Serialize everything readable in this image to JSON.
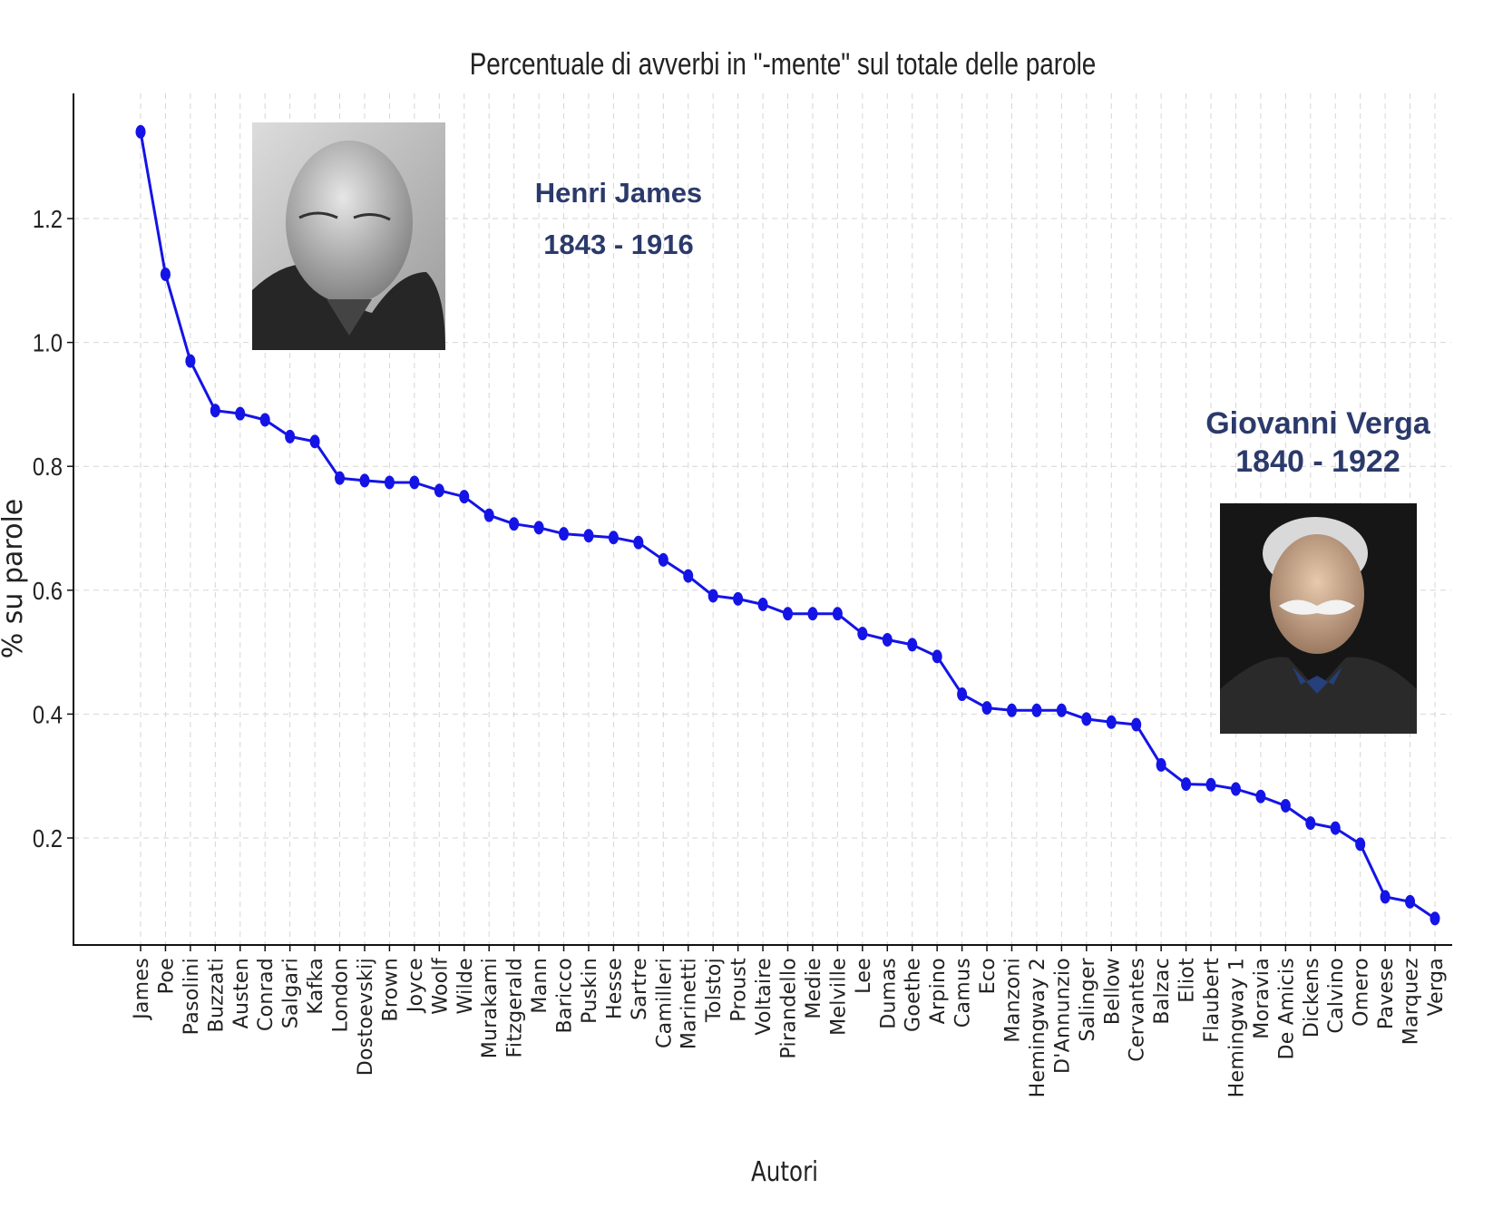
{
  "chart_data": {
    "type": "line",
    "title": "Percentuale di avverbi in \"-mente\" sul totale delle parole",
    "xlabel": "Autori",
    "ylabel": "% su parole",
    "ylim": [
      0.0,
      1.36
    ],
    "yticks": [
      "0.2",
      "0.4",
      "0.6",
      "0.8",
      "1.0",
      "1.2"
    ],
    "grid": true,
    "categories": [
      "James",
      "Poe",
      "Pasolini",
      "Buzzati",
      "Austen",
      "Conrad",
      "Salgari",
      "Kafka",
      "London",
      "Dostoevskij",
      "Brown",
      "Joyce",
      "Woolf",
      "Wilde",
      "Murakami",
      "Fitzgerald",
      "Mann",
      "Baricco",
      "Puskin",
      "Hesse",
      "Sartre",
      "Camilleri",
      "Marinetti",
      "Tolstoj",
      "Proust",
      "Voltaire",
      "Pirandello",
      "Medie",
      "Melville",
      "Lee",
      "Dumas",
      "Goethe",
      "Arpino",
      "Camus",
      "Eco",
      "Manzoni",
      "Hemingway 2",
      "D'Annunzio",
      "Salinger",
      "Bellow",
      "Cervantes",
      "Balzac",
      "Eliot",
      "Flaubert",
      "Hemingway 1",
      "Moravia",
      "De Amicis",
      "Dickens",
      "Calvino",
      "Omero",
      "Pavese",
      "Marquez",
      "Verga"
    ],
    "values": [
      1.34,
      1.11,
      0.97,
      0.89,
      0.885,
      0.875,
      0.848,
      0.84,
      0.781,
      0.777,
      0.774,
      0.774,
      0.761,
      0.751,
      0.721,
      0.707,
      0.701,
      0.691,
      0.688,
      0.685,
      0.677,
      0.649,
      0.623,
      0.591,
      0.586,
      0.577,
      0.562,
      0.562,
      0.562,
      0.53,
      0.52,
      0.512,
      0.493,
      0.432,
      0.41,
      0.406,
      0.406,
      0.406,
      0.392,
      0.387,
      0.383,
      0.318,
      0.287,
      0.286,
      0.279,
      0.267,
      0.252,
      0.224,
      0.216,
      0.19,
      0.105,
      0.097,
      0.07
    ],
    "line_color": "#1414e6"
  },
  "annotations": {
    "james": {
      "name": "Henri James",
      "years": "1843 - 1916"
    },
    "verga": {
      "name": "Giovanni Verga",
      "years": "1840 - 1922"
    }
  },
  "colors": {
    "annotation_text": "#2b3a6b"
  }
}
